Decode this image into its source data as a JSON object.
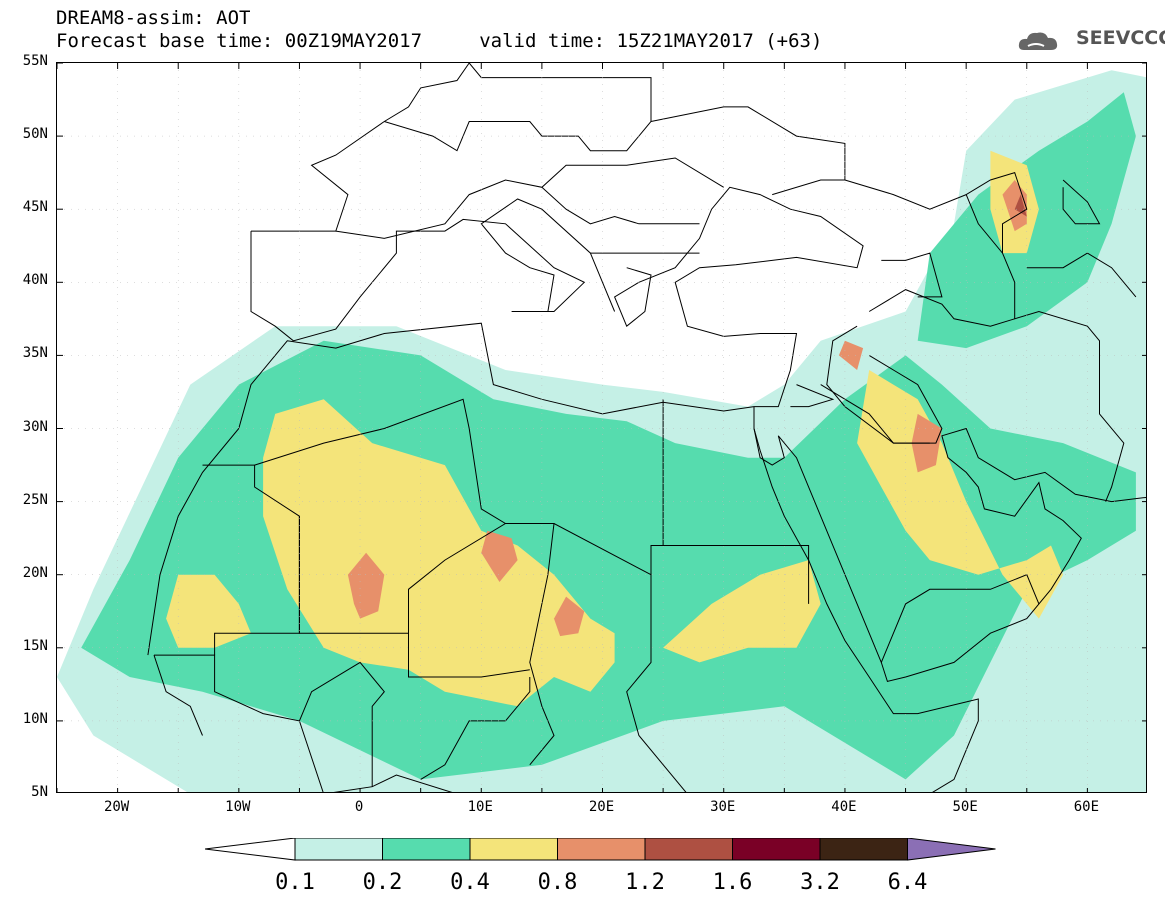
{
  "header": {
    "title_line1": "DREAM8-assim: AOT",
    "title_line2": "Forecast base time: 00Z19MAY2017     valid time: 15Z21MAY2017 (+63)",
    "logo_text": "SEEVCCC"
  },
  "axes": {
    "lat_labels": [
      "55N",
      "50N",
      "45N",
      "40N",
      "35N",
      "30N",
      "25N",
      "20N",
      "15N",
      "10N",
      "5N"
    ],
    "lon_labels": [
      "20W",
      "10W",
      "0",
      "10E",
      "20E",
      "30E",
      "40E",
      "50E",
      "60E"
    ],
    "lat_range": [
      5,
      55
    ],
    "lon_range": [
      -25,
      65
    ]
  },
  "colorbar": {
    "levels": [
      "0.1",
      "0.2",
      "0.4",
      "0.8",
      "1.2",
      "1.6",
      "3.2",
      "6.4"
    ],
    "colors": [
      "#c5f0e6",
      "#56dcae",
      "#f4e47a",
      "#e7906a",
      "#ae5042",
      "#7a0026",
      "#3c2414",
      "#8b6fb5"
    ]
  }
}
